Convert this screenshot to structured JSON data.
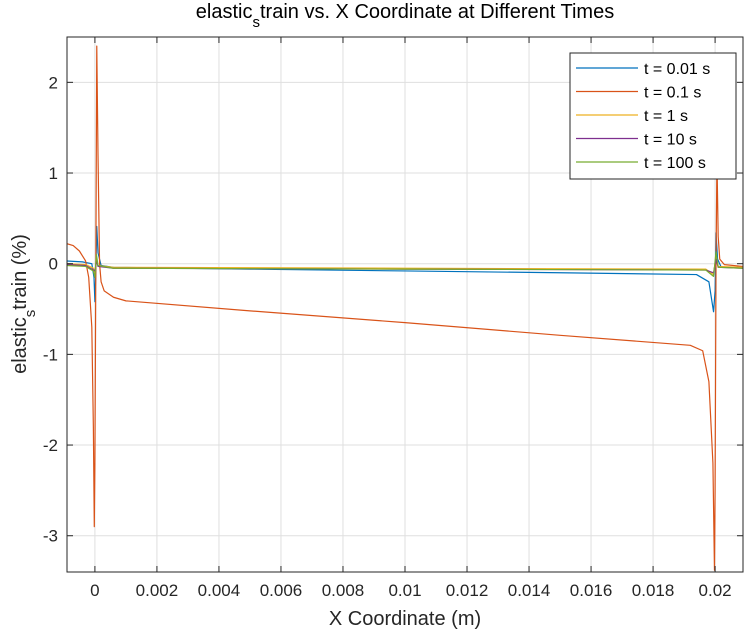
{
  "chart_data": {
    "type": "line",
    "title": "elastic_strain vs. X Coordinate at Different Times",
    "xlabel": "X Coordinate (m)",
    "ylabel": "elastic_strain (%)",
    "xlim": [
      -0.0009,
      0.0209
    ],
    "ylim": [
      -3.4,
      2.5
    ],
    "xticks": [
      0,
      0.002,
      0.004,
      0.006,
      0.008,
      0.01,
      0.012,
      0.014,
      0.016,
      0.018,
      0.02
    ],
    "xtick_labels": [
      "0",
      "0.002",
      "0.004",
      "0.006",
      "0.008",
      "0.01",
      "0.012",
      "0.014",
      "0.016",
      "0.018",
      "0.02"
    ],
    "yticks": [
      -3,
      -2,
      -1,
      0,
      1,
      2
    ],
    "ytick_labels": [
      "-3",
      "-2",
      "-1",
      "0",
      "1",
      "2"
    ],
    "grid": true,
    "legend_position": "top-right",
    "series": [
      {
        "name": "t = 0.01 s",
        "color": "#0072BD",
        "points": [
          [
            -0.0009,
            0.03
          ],
          [
            -0.0004,
            0.02
          ],
          [
            -0.0001,
            0.0
          ],
          [
            -3e-05,
            -0.15
          ],
          [
            0.0,
            -0.42
          ],
          [
            3e-05,
            -0.1
          ],
          [
            6e-05,
            0.41
          ],
          [
            0.0001,
            0.12
          ],
          [
            0.0002,
            -0.02
          ],
          [
            0.0006,
            -0.04
          ],
          [
            0.005,
            -0.06
          ],
          [
            0.01,
            -0.08
          ],
          [
            0.015,
            -0.1
          ],
          [
            0.0194,
            -0.12
          ],
          [
            0.0198,
            -0.2
          ],
          [
            0.01995,
            -0.53
          ],
          [
            0.02,
            -0.3
          ],
          [
            0.02003,
            0.34
          ],
          [
            0.02008,
            0.05
          ],
          [
            0.0202,
            -0.04
          ],
          [
            0.0209,
            -0.04
          ]
        ]
      },
      {
        "name": "t = 0.1 s",
        "color": "#D95319",
        "points": [
          [
            -0.0009,
            0.22
          ],
          [
            -0.0007,
            0.2
          ],
          [
            -0.0005,
            0.14
          ],
          [
            -0.0003,
            0.03
          ],
          [
            -0.0002,
            -0.15
          ],
          [
            -0.0001,
            -0.7
          ],
          [
            -5e-05,
            -1.8
          ],
          [
            -2e-05,
            -2.9
          ],
          [
            0.0,
            -2.2
          ],
          [
            3e-05,
            0.0
          ],
          [
            6e-05,
            2.4
          ],
          [
            0.0001,
            1.2
          ],
          [
            0.00015,
            0.0
          ],
          [
            0.0002,
            -0.2
          ],
          [
            0.0003,
            -0.3
          ],
          [
            0.0006,
            -0.37
          ],
          [
            0.001,
            -0.41
          ],
          [
            0.005,
            -0.52
          ],
          [
            0.01,
            -0.65
          ],
          [
            0.015,
            -0.79
          ],
          [
            0.0192,
            -0.9
          ],
          [
            0.0196,
            -0.96
          ],
          [
            0.0198,
            -1.3
          ],
          [
            0.01993,
            -2.2
          ],
          [
            0.01998,
            -3.38
          ],
          [
            0.02,
            -2.5
          ],
          [
            0.02003,
            0.0
          ],
          [
            0.02006,
            1.15
          ],
          [
            0.0201,
            0.3
          ],
          [
            0.02015,
            0.05
          ],
          [
            0.0203,
            -0.01
          ],
          [
            0.0209,
            -0.03
          ]
        ]
      },
      {
        "name": "t = 1 s",
        "color": "#EDB120",
        "points": [
          [
            -0.0009,
            0.0
          ],
          [
            -0.0003,
            -0.01
          ],
          [
            -5e-05,
            -0.05
          ],
          [
            0.0,
            -0.1
          ],
          [
            5e-05,
            0.05
          ],
          [
            0.0001,
            -0.02
          ],
          [
            0.0006,
            -0.04
          ],
          [
            0.01,
            -0.05
          ],
          [
            0.0197,
            -0.06
          ],
          [
            0.01995,
            -0.12
          ],
          [
            0.02003,
            0.08
          ],
          [
            0.0201,
            -0.03
          ],
          [
            0.0209,
            -0.04
          ]
        ]
      },
      {
        "name": "t = 10 s",
        "color": "#7E2F8E",
        "points": [
          [
            -0.0009,
            -0.01
          ],
          [
            -0.0003,
            -0.02
          ],
          [
            0.0,
            -0.08
          ],
          [
            5e-05,
            0.03
          ],
          [
            0.0001,
            -0.03
          ],
          [
            0.0006,
            -0.05
          ],
          [
            0.01,
            -0.06
          ],
          [
            0.0197,
            -0.07
          ],
          [
            0.01995,
            -0.1
          ],
          [
            0.02003,
            0.05
          ],
          [
            0.0201,
            -0.04
          ],
          [
            0.0209,
            -0.05
          ]
        ]
      },
      {
        "name": "t = 100 s",
        "color": "#77AC30",
        "points": [
          [
            -0.0009,
            -0.02
          ],
          [
            -0.0003,
            -0.03
          ],
          [
            -5e-05,
            -0.08
          ],
          [
            0.0,
            -0.15
          ],
          [
            5e-05,
            0.1
          ],
          [
            0.0001,
            -0.02
          ],
          [
            0.0006,
            -0.05
          ],
          [
            0.01,
            -0.06
          ],
          [
            0.0197,
            -0.07
          ],
          [
            0.01995,
            -0.14
          ],
          [
            0.02003,
            0.13
          ],
          [
            0.0201,
            -0.04
          ],
          [
            0.0209,
            -0.05
          ]
        ]
      }
    ]
  }
}
